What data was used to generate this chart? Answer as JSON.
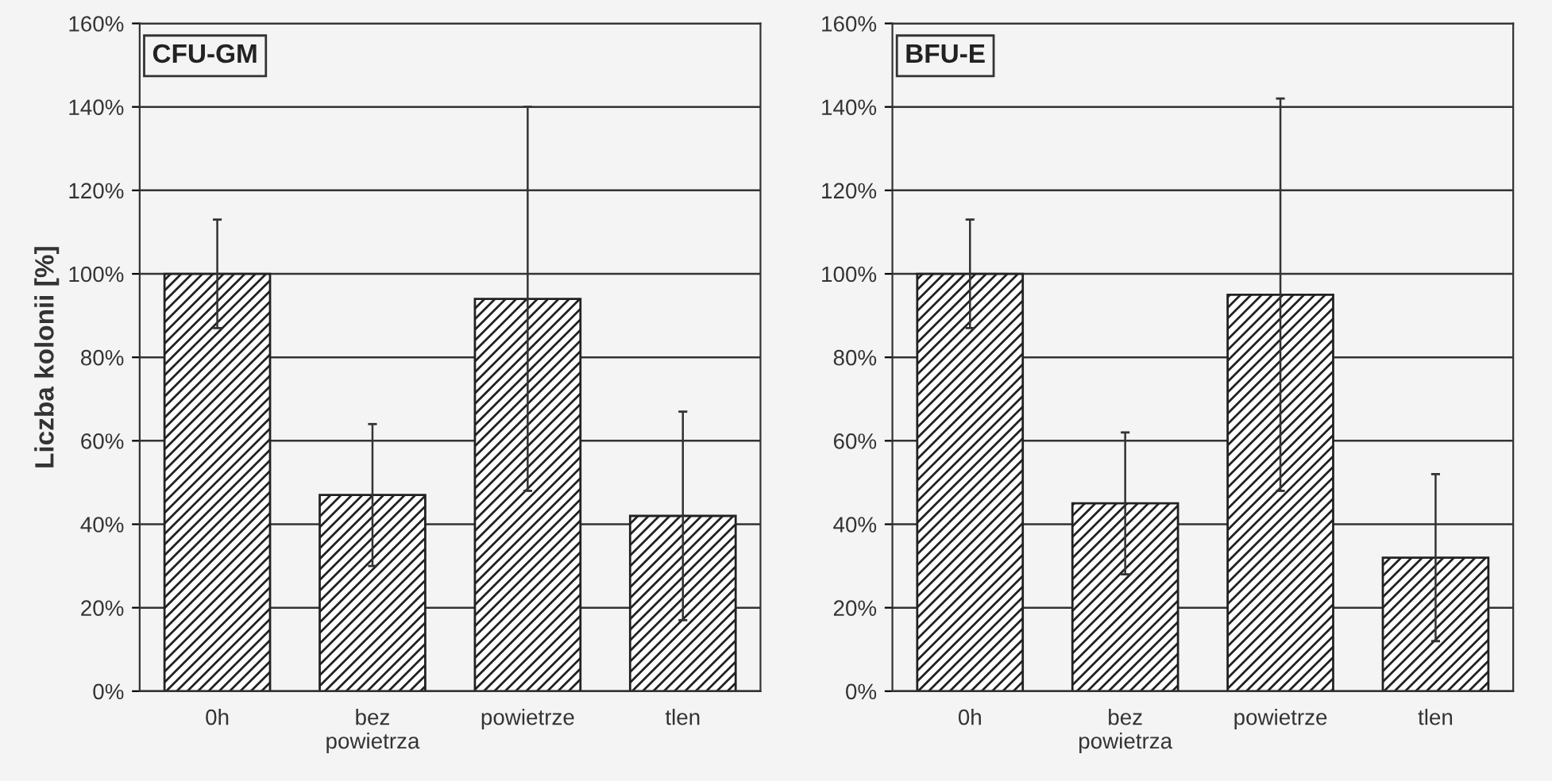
{
  "chart_data": [
    {
      "type": "bar",
      "title": "CFU-GM",
      "ylabel": "Liczba kolonii [%]",
      "categories": [
        "0h",
        "bez\npowietrza",
        "powietrze",
        "tlen"
      ],
      "values": [
        100,
        47,
        94,
        42
      ],
      "errors": [
        13,
        17,
        46,
        25
      ],
      "color": "#222222",
      "ylim": [
        0,
        160
      ],
      "yticks": [
        {
          "value": 0,
          "label": "0%"
        },
        {
          "value": 20,
          "label": "20%"
        },
        {
          "value": 40,
          "label": "40%"
        },
        {
          "value": 60,
          "label": "60%"
        },
        {
          "value": 80,
          "label": "80%"
        },
        {
          "value": 100,
          "label": "100%"
        },
        {
          "value": 120,
          "label": "120%"
        },
        {
          "value": 140,
          "label": "140%"
        },
        {
          "value": 160,
          "label": "160%"
        }
      ],
      "grid": "y"
    },
    {
      "type": "bar",
      "title": "BFU-E",
      "categories": [
        "0h",
        "bez\npowietrza",
        "powietrze",
        "tlen"
      ],
      "values": [
        100,
        45,
        95,
        32
      ],
      "errors": [
        13,
        17,
        47,
        20
      ],
      "color": "#222222",
      "ylim": [
        0,
        160
      ],
      "yticks": [
        {
          "value": 0,
          "label": "0%"
        },
        {
          "value": 20,
          "label": "20%"
        },
        {
          "value": 40,
          "label": "40%"
        },
        {
          "value": 60,
          "label": "60%"
        },
        {
          "value": 80,
          "label": "80%"
        },
        {
          "value": 100,
          "label": "100%"
        },
        {
          "value": 120,
          "label": "120%"
        },
        {
          "value": 140,
          "label": "140%"
        },
        {
          "value": 160,
          "label": "160%"
        }
      ],
      "grid": "y"
    }
  ]
}
